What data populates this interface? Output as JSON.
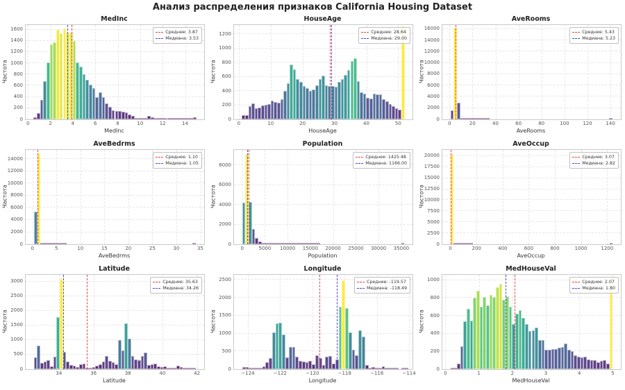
{
  "suptitle": "Анализ распределения признаков California Housing Dataset",
  "colors": {
    "mean_line": "#ed3e3e",
    "median_line": "#4343de",
    "bar_colormap": "viridis"
  },
  "chart_data": [
    {
      "type": "bar",
      "title": "MedInc",
      "xlabel": "MedInc",
      "ylabel": "Частота",
      "bin_start": 0.5,
      "bin_width": 0.29,
      "values": [
        40,
        110,
        350,
        675,
        1010,
        1340,
        1370,
        1590,
        1530,
        1620,
        1550,
        1545,
        1400,
        1010,
        945,
        800,
        705,
        620,
        555,
        400,
        485,
        390,
        290,
        220,
        165,
        145,
        150,
        140,
        120,
        90,
        60,
        30,
        25,
        20,
        25,
        60,
        35,
        30,
        25,
        12,
        10,
        8,
        5,
        4,
        3,
        3,
        2,
        2,
        2,
        40
      ],
      "xlim": [
        -0.2,
        15.7
      ],
      "ylim": [
        0,
        1680
      ],
      "xtick_vals": [
        0,
        2,
        4,
        6,
        8,
        10,
        12,
        14
      ],
      "xtick_labels": [
        "0",
        "2",
        "4",
        "6",
        "8",
        "10",
        "12",
        "14"
      ],
      "ytick_vals": [
        0,
        200,
        400,
        600,
        800,
        1000,
        1200,
        1400,
        1600
      ],
      "ytick_labels": [
        "0",
        "200",
        "400",
        "600",
        "800",
        "1000",
        "1200",
        "1400",
        "1600"
      ],
      "mean": 3.87,
      "median": 3.53,
      "legend_mean": "Среднее: 3.87",
      "legend_median": "Медиана: 3.53"
    },
    {
      "type": "bar",
      "title": "HouseAge",
      "xlabel": "HouseAge",
      "ylabel": "Частота",
      "bin_start": 1,
      "bin_width": 1,
      "values": [
        62,
        62,
        190,
        228,
        155,
        167,
        200,
        208,
        215,
        262,
        248,
        232,
        288,
        405,
        510,
        768,
        700,
        570,
        525,
        465,
        440,
        398,
        420,
        480,
        570,
        620,
        480,
        470,
        465,
        460,
        530,
        570,
        625,
        690,
        825,
        860,
        535,
        385,
        360,
        300,
        290,
        365,
        350,
        350,
        285,
        250,
        220,
        185,
        160,
        135,
        1310
      ],
      "xlim": [
        -1.5,
        54.5
      ],
      "ylim": [
        0,
        1330
      ],
      "xtick_vals": [
        0,
        10,
        20,
        30,
        40,
        50
      ],
      "xtick_labels": [
        "0",
        "10",
        "20",
        "30",
        "40",
        "50"
      ],
      "ytick_vals": [
        0,
        200,
        400,
        600,
        800,
        1000,
        1200
      ],
      "ytick_labels": [
        "0",
        "200",
        "400",
        "600",
        "800",
        "1000",
        "1200"
      ],
      "mean": 28.64,
      "median": 29.0,
      "legend_mean": "Среднее: 28.64",
      "legend_median": "Медиана: 29.00"
    },
    {
      "type": "bar",
      "title": "AveRooms",
      "xlabel": "AveRooms",
      "ylabel": "Частота",
      "bin_start": 0.85,
      "bin_width": 2.82,
      "values": [
        1600,
        16200,
        3000,
        150,
        30,
        10,
        5,
        3,
        2,
        1,
        1,
        1,
        0,
        0,
        0,
        0,
        0,
        0,
        0,
        0,
        0,
        0,
        0,
        0,
        0,
        0,
        0,
        0,
        0,
        0,
        0,
        0,
        0,
        0,
        0,
        0,
        0,
        0,
        0,
        0,
        0,
        0,
        0,
        0,
        0,
        0,
        0,
        0,
        0,
        1
      ],
      "xlim": [
        -6.2,
        149
      ],
      "ylim": [
        0,
        16700
      ],
      "xtick_vals": [
        0,
        20,
        40,
        60,
        80,
        100,
        120,
        140
      ],
      "xtick_labels": [
        "0",
        "20",
        "40",
        "60",
        "80",
        "100",
        "120",
        "140"
      ],
      "ytick_vals": [
        0,
        2000,
        4000,
        6000,
        8000,
        10000,
        12000,
        14000,
        16000
      ],
      "ytick_labels": [
        "0",
        "2000",
        "4000",
        "6000",
        "8000",
        "10000",
        "12000",
        "14000",
        "16000"
      ],
      "mean": 5.43,
      "median": 5.23,
      "legend_mean": "Среднее: 5.43",
      "legend_median": "Медиана: 5.23"
    },
    {
      "type": "bar",
      "title": "AveBedrms",
      "xlabel": "AveBedrms",
      "ylabel": "Частота",
      "bin_start": 0.33,
      "bin_width": 0.675,
      "values": [
        5400,
        14900,
        150,
        30,
        10,
        5,
        3,
        2,
        1,
        1,
        0,
        0,
        0,
        0,
        0,
        0,
        0,
        0,
        0,
        0,
        0,
        0,
        0,
        0,
        0,
        0,
        0,
        0,
        0,
        0,
        0,
        0,
        0,
        0,
        0,
        0,
        0,
        0,
        0,
        0,
        0,
        0,
        0,
        0,
        0,
        0,
        0,
        0,
        0,
        1
      ],
      "xlim": [
        -1.4,
        35.8
      ],
      "ylim": [
        0,
        15500
      ],
      "xtick_vals": [
        0,
        5,
        10,
        15,
        20,
        25,
        30,
        35
      ],
      "xtick_labels": [
        "0",
        "5",
        "10",
        "15",
        "20",
        "25",
        "30",
        "35"
      ],
      "ytick_vals": [
        0,
        2000,
        4000,
        6000,
        8000,
        10000,
        12000,
        14000
      ],
      "ytick_labels": [
        "0",
        "2000",
        "4000",
        "6000",
        "8000",
        "10000",
        "12000",
        "14000"
      ],
      "mean": 1.1,
      "median": 1.05,
      "legend_mean": "Среднее: 1.10",
      "legend_median": "Медиана: 1.05"
    },
    {
      "type": "bar",
      "title": "Population",
      "xlabel": "Population",
      "ylabel": "Частота",
      "bin_start": 3,
      "bin_width": 713,
      "values": [
        4200,
        9100,
        4300,
        1550,
        650,
        300,
        150,
        80,
        50,
        30,
        20,
        15,
        10,
        8,
        6,
        5,
        4,
        3,
        2,
        2,
        1,
        1,
        1,
        1,
        0,
        0,
        0,
        0,
        0,
        0,
        0,
        0,
        0,
        0,
        0,
        0,
        0,
        0,
        0,
        0,
        0,
        0,
        0,
        0,
        0,
        0,
        0,
        0,
        0,
        1
      ],
      "xlim": [
        -1780,
        37460
      ],
      "ylim": [
        0,
        9550
      ],
      "xtick_vals": [
        0,
        5000,
        10000,
        15000,
        20000,
        25000,
        30000,
        35000
      ],
      "xtick_labels": [
        "0",
        "5000",
        "10000",
        "15000",
        "20000",
        "25000",
        "30000",
        "35000"
      ],
      "ytick_vals": [
        0,
        2000,
        4000,
        6000,
        8000
      ],
      "ytick_labels": [
        "0",
        "2000",
        "4000",
        "6000",
        "8000"
      ],
      "mean": 1425.48,
      "median": 1166.0,
      "legend_mean": "Среднее: 1425.48",
      "legend_median": "Медиана: 1166.00"
    },
    {
      "type": "bar",
      "title": "AveOccup",
      "xlabel": "AveOccup",
      "ylabel": "Частота",
      "bin_start": 0.7,
      "bin_width": 24.85,
      "values": [
        20500,
        40,
        8,
        3,
        2,
        1,
        1,
        0,
        0,
        0,
        0,
        0,
        0,
        0,
        0,
        0,
        0,
        0,
        0,
        0,
        0,
        0,
        0,
        0,
        0,
        0,
        0,
        0,
        0,
        0,
        0,
        0,
        0,
        0,
        0,
        0,
        0,
        0,
        0,
        0,
        0,
        0,
        0,
        0,
        0,
        0,
        0,
        0,
        0,
        1
      ],
      "xlim": [
        -61.4,
        1305
      ],
      "ylim": [
        0,
        21400
      ],
      "xtick_vals": [
        0,
        200,
        400,
        600,
        800,
        1000,
        1200
      ],
      "xtick_labels": [
        "0",
        "200",
        "400",
        "600",
        "800",
        "1000",
        "1200"
      ],
      "ytick_vals": [
        0,
        2500,
        5000,
        7500,
        10000,
        12500,
        15000,
        17500,
        20000
      ],
      "ytick_labels": [
        "0",
        "2500",
        "5000",
        "7500",
        "10000",
        "12500",
        "15000",
        "17500",
        "20000"
      ],
      "mean": 3.07,
      "median": 2.82,
      "legend_mean": "Среднее: 3.07",
      "legend_median": "Медиана: 2.82"
    },
    {
      "type": "bar",
      "title": "Latitude",
      "xlabel": "Latitude",
      "ylabel": "Частота",
      "bin_start": 32.54,
      "bin_width": 0.188,
      "values": [
        400,
        810,
        220,
        250,
        310,
        100,
        430,
        1780,
        3080,
        600,
        260,
        150,
        120,
        60,
        170,
        200,
        30,
        10,
        60,
        110,
        160,
        250,
        450,
        290,
        240,
        160,
        1000,
        630,
        1570,
        1050,
        450,
        340,
        320,
        450,
        580,
        140,
        160,
        190,
        100,
        60,
        100,
        30,
        30,
        20,
        110,
        60,
        50,
        10,
        8,
        5
      ],
      "xlim": [
        32.07,
        42.42
      ],
      "ylim": [
        0,
        3230
      ],
      "xtick_vals": [
        34,
        36,
        38,
        40,
        42
      ],
      "xtick_labels": [
        "34",
        "36",
        "38",
        "40",
        "42"
      ],
      "ytick_vals": [
        0,
        500,
        1000,
        1500,
        2000,
        2500,
        3000
      ],
      "ytick_labels": [
        "0",
        "500",
        "1000",
        "1500",
        "2000",
        "2500",
        "3000"
      ],
      "mean": 35.63,
      "median": 34.26,
      "legend_mean": "Среднее: 35.63",
      "legend_median": "Медиана: 34.26"
    },
    {
      "type": "bar",
      "title": "Longitude",
      "xlabel": "Longitude",
      "ylabel": "Частота",
      "bin_start": -124.35,
      "bin_width": 0.206,
      "values": [
        55,
        65,
        25,
        15,
        30,
        45,
        80,
        200,
        310,
        1020,
        1290,
        1310,
        980,
        330,
        630,
        620,
        350,
        230,
        210,
        190,
        225,
        140,
        380,
        320,
        120,
        350,
        360,
        150,
        270,
        1740,
        2490,
        1710,
        1030,
        545,
        390,
        1090,
        920,
        120,
        40,
        60,
        40,
        30,
        80,
        30,
        5,
        2,
        1,
        0,
        20,
        5
      ],
      "xlim": [
        -124.86,
        -113.79
      ],
      "ylim": [
        0,
        2640
      ],
      "xtick_vals": [
        -124,
        -122,
        -120,
        -118,
        -116,
        -114
      ],
      "xtick_labels": [
        "−124",
        "−122",
        "−120",
        "−118",
        "−116",
        "−114"
      ],
      "ytick_vals": [
        0,
        500,
        1000,
        1500,
        2000,
        2500
      ],
      "ytick_labels": [
        "0",
        "500",
        "1000",
        "1500",
        "2000",
        "2500"
      ],
      "mean": -119.57,
      "median": -118.49,
      "legend_mean": "Среднее: -119.57",
      "legend_median": "Медиана: -118.49"
    },
    {
      "type": "bar",
      "title": "MedHouseVal",
      "xlabel": "MedHouseVal",
      "ylabel": "Частота",
      "bin_start": 0.15,
      "bin_width": 0.097,
      "values": [
        10,
        15,
        60,
        255,
        540,
        675,
        545,
        805,
        880,
        705,
        810,
        715,
        835,
        810,
        920,
        955,
        780,
        815,
        700,
        505,
        620,
        660,
        580,
        505,
        430,
        440,
        465,
        330,
        325,
        215,
        220,
        225,
        230,
        240,
        250,
        285,
        215,
        205,
        155,
        140,
        130,
        140,
        110,
        105,
        100,
        80,
        90,
        105,
        60,
        1030
      ],
      "xlim": [
        -0.09,
        5.24
      ],
      "ylim": [
        0,
        1060
      ],
      "xtick_vals": [
        0,
        1,
        2,
        3,
        4,
        5
      ],
      "xtick_labels": [
        "0",
        "1",
        "2",
        "3",
        "4",
        "5"
      ],
      "ytick_vals": [
        0,
        200,
        400,
        600,
        800,
        1000
      ],
      "ytick_labels": [
        "0",
        "200",
        "400",
        "600",
        "800",
        "1000"
      ],
      "mean": 2.07,
      "median": 1.8,
      "legend_mean": "Среднее: 2.07",
      "legend_median": "Медиана: 1.80"
    }
  ]
}
